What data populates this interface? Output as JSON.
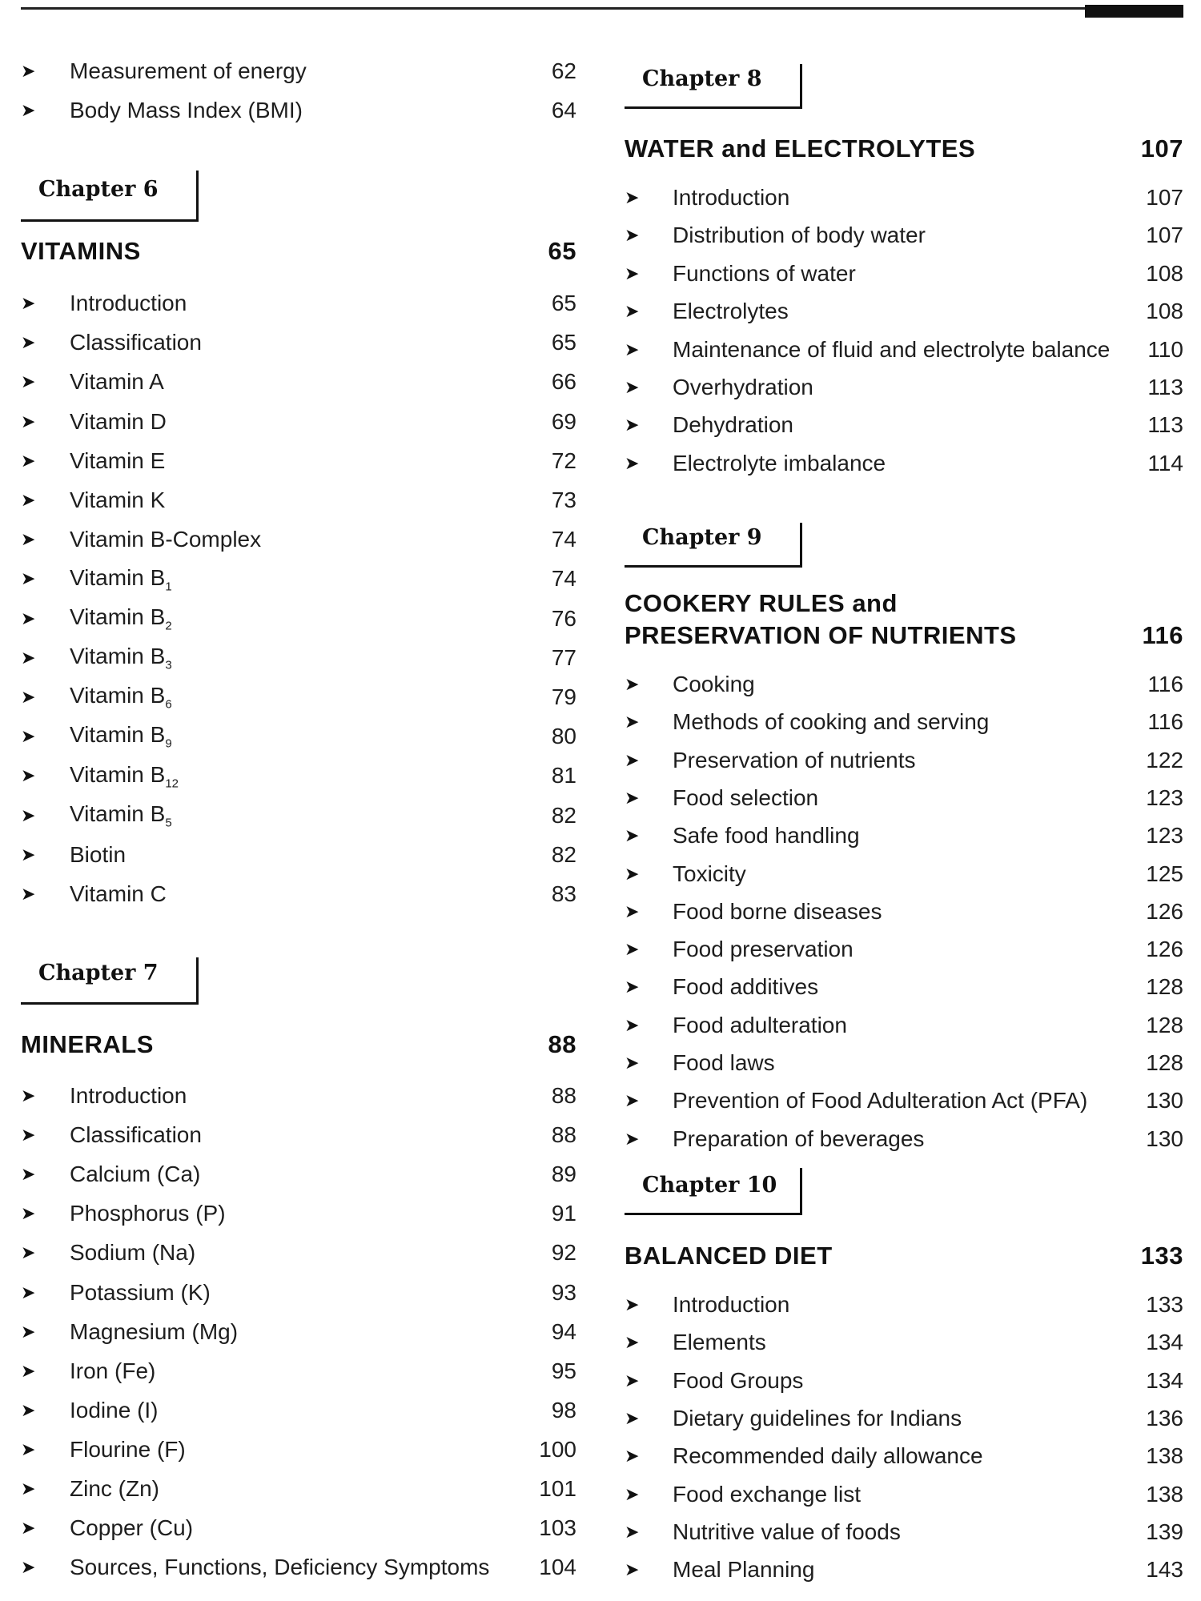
{
  "left_column": {
    "top_items": [
      {
        "label": "Measurement of energy",
        "page": "62"
      },
      {
        "label": "Body Mass Index (BMI)",
        "page": "64"
      }
    ],
    "chapters": [
      {
        "chapter_label": "Chapter 6",
        "title": "VITAMINS",
        "page": "65",
        "items": [
          {
            "label": "Introduction",
            "page": "65"
          },
          {
            "label": "Classification",
            "page": "65"
          },
          {
            "label": "Vitamin A",
            "page": "66"
          },
          {
            "label": "Vitamin D",
            "page": "69"
          },
          {
            "label": "Vitamin E",
            "page": "72"
          },
          {
            "label": "Vitamin K",
            "page": "73"
          },
          {
            "label": "Vitamin B-Complex",
            "page": "74"
          },
          {
            "label": "Vitamin B",
            "sub": "1",
            "page": "74"
          },
          {
            "label": "Vitamin B",
            "sub": "2",
            "page": "76"
          },
          {
            "label": "Vitamin B",
            "sub": "3",
            "page": "77"
          },
          {
            "label": "Vitamin B",
            "sub": "6",
            "page": "79"
          },
          {
            "label": "Vitamin B",
            "sub": "9",
            "page": "80"
          },
          {
            "label": "Vitamin B",
            "sub": "12",
            "page": "81"
          },
          {
            "label": "Vitamin B",
            "sub": "5",
            "page": "82"
          },
          {
            "label": "Biotin",
            "page": "82"
          },
          {
            "label": "Vitamin C",
            "page": "83"
          }
        ]
      },
      {
        "chapter_label": "Chapter 7",
        "title": "MINERALS",
        "page": "88",
        "items": [
          {
            "label": "Introduction",
            "page": "88"
          },
          {
            "label": "Classification",
            "page": "88"
          },
          {
            "label": "Calcium (Ca)",
            "page": "89"
          },
          {
            "label": "Phosphorus (P)",
            "page": "91"
          },
          {
            "label": "Sodium (Na)",
            "page": "92"
          },
          {
            "label": "Potassium (K)",
            "page": "93"
          },
          {
            "label": "Magnesium (Mg)",
            "page": "94"
          },
          {
            "label": "Iron (Fe)",
            "page": "95"
          },
          {
            "label": "Iodine (I)",
            "page": "98"
          },
          {
            "label": "Flourine (F)",
            "page": "100"
          },
          {
            "label": "Zinc (Zn)",
            "page": "101"
          },
          {
            "label": "Copper (Cu)",
            "page": "103"
          },
          {
            "label": "Sources, Functions, Deficiency Symptoms",
            "page": "104"
          }
        ]
      }
    ]
  },
  "right_column": {
    "chapters": [
      {
        "chapter_label": "Chapter 8",
        "title": "WATER and ELECTROLYTES",
        "page": "107",
        "items": [
          {
            "label": "Introduction",
            "page": "107"
          },
          {
            "label": "Distribution of body water",
            "page": "107"
          },
          {
            "label": "Functions of water",
            "page": "108"
          },
          {
            "label": "Electrolytes",
            "page": "108"
          },
          {
            "label": "Maintenance of fluid and electrolyte balance",
            "page": "110"
          },
          {
            "label": "Overhydration",
            "page": "113"
          },
          {
            "label": "Dehydration",
            "page": "113"
          },
          {
            "label": "Electrolyte imbalance",
            "page": "114"
          }
        ]
      },
      {
        "chapter_label": "Chapter 9",
        "title": "COOKERY RULES and",
        "title_line2": "PRESERVATION OF NUTRIENTS",
        "page": "116",
        "items": [
          {
            "label": "Cooking",
            "page": "116"
          },
          {
            "label": "Methods of cooking and serving",
            "page": "116"
          },
          {
            "label": "Preservation of nutrients",
            "page": "122"
          },
          {
            "label": "Food selection",
            "page": "123"
          },
          {
            "label": "Safe food handling",
            "page": "123"
          },
          {
            "label": "Toxicity",
            "page": "125"
          },
          {
            "label": "Food borne diseases",
            "page": "126"
          },
          {
            "label": "Food preservation",
            "page": "126"
          },
          {
            "label": "Food additives",
            "page": "128"
          },
          {
            "label": "Food adulteration",
            "page": "128"
          },
          {
            "label": "Food laws",
            "page": "128"
          },
          {
            "label": "Prevention of Food Adulteration Act (PFA)",
            "page": "130"
          },
          {
            "label": "Preparation of beverages",
            "page": "130"
          }
        ]
      },
      {
        "chapter_label": "Chapter 10",
        "title": "BALANCED DIET",
        "page": "133",
        "items": [
          {
            "label": "Introduction",
            "page": "133"
          },
          {
            "label": "Elements",
            "page": "134"
          },
          {
            "label": "Food Groups",
            "page": "134"
          },
          {
            "label": "Dietary guidelines for Indians",
            "page": "136"
          },
          {
            "label": "Recommended daily allowance",
            "page": "138"
          },
          {
            "label": "Food exchange list",
            "page": "138"
          },
          {
            "label": "Nutritive value of foods",
            "page": "139"
          },
          {
            "label": "Meal Planning",
            "page": "143"
          }
        ]
      }
    ]
  },
  "icons": {
    "bullet": "arrowhead-bullet-icon"
  }
}
